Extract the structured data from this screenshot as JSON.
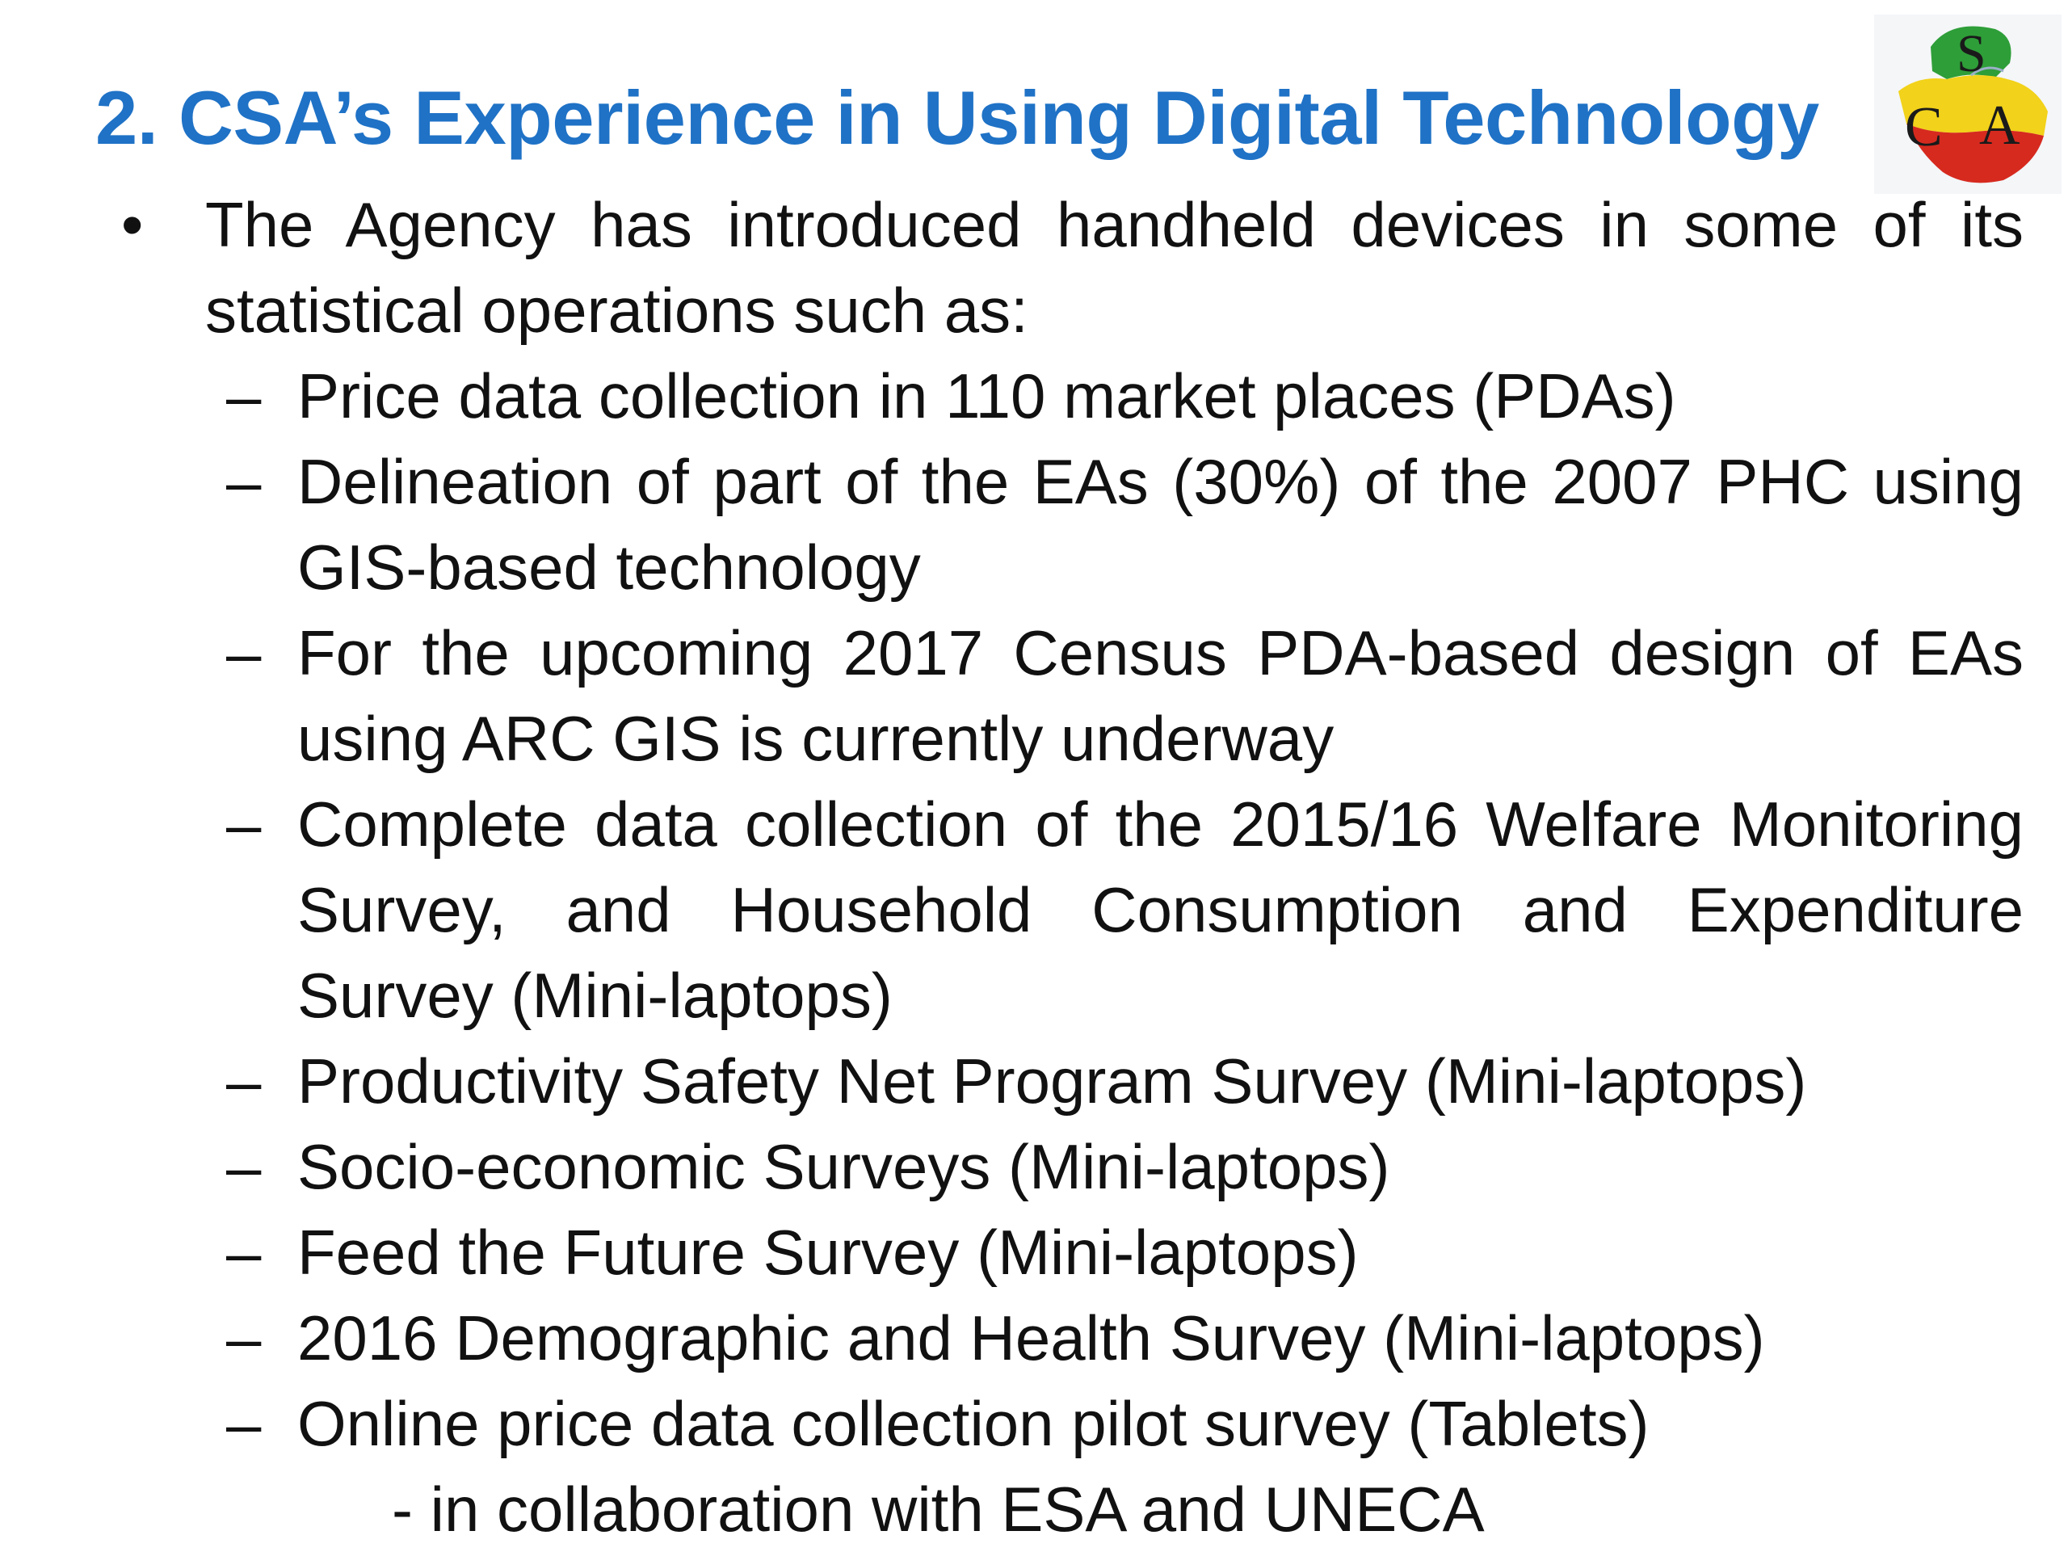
{
  "slide": {
    "title": "2. CSA’s Experience in Using Digital Technology",
    "logo": {
      "text_top": "S",
      "text_left": "C",
      "text_right": "A",
      "colors": [
        "#2e9e38",
        "#f2d21a",
        "#d62a1f",
        "#9ab0c8"
      ]
    },
    "bullet": {
      "marker": "•",
      "text": "The Agency has introduced handheld devices in some of its statistical operations such as:"
    },
    "sub_marker": "–",
    "items": [
      "Price data collection in 110 market places (PDAs)",
      "Delineation of part of the EAs (30%) of the 2007 PHC using GIS-based technology",
      "For the upcoming 2017 Census PDA-based design of EAs using ARC GIS is currently underway",
      "Complete data collection of the 2015/16 Welfare Monitoring Survey, and Household Consumption and Expenditure Survey (Mini-laptops)",
      "Productivity Safety Net Program  Survey (Mini-laptops)",
      "Socio-economic Surveys (Mini-laptops)",
      "Feed the Future Survey (Mini-laptops)",
      "2016 Demographic and Health Survey (Mini-laptops)",
      "Online price data collection pilot survey (Tablets)"
    ],
    "tail_note": "- in collaboration with ESA and UNECA"
  }
}
